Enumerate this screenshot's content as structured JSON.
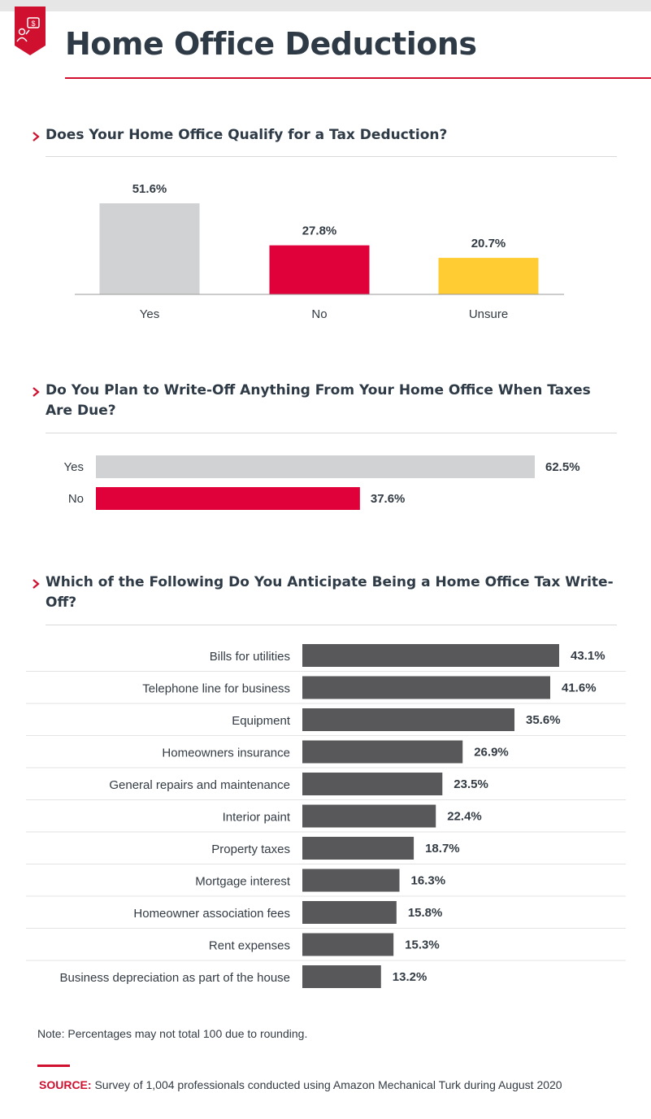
{
  "header": {
    "title": "Home Office Deductions"
  },
  "colors": {
    "accent": "#d0102f",
    "gray": "#d1d2d4",
    "yellow": "#ffcc33",
    "dark": "#58585a"
  },
  "icons": {
    "badge": "tax-dollar-icon",
    "bullet": "chevron-right-icon"
  },
  "chart_data": [
    {
      "type": "bar",
      "title": "Does Your Home Office Qualify for a Tax Deduction?",
      "categories": [
        "Yes",
        "No",
        "Unsure"
      ],
      "values": [
        51.6,
        27.8,
        20.7
      ],
      "value_labels": [
        "51.6%",
        "27.8%",
        "20.7%"
      ],
      "colors": [
        "#d1d2d4",
        "#e0003a",
        "#ffcc33"
      ],
      "unit": "%",
      "ylim": [
        0,
        60
      ],
      "grid": false
    },
    {
      "type": "bar",
      "orientation": "horizontal",
      "title": "Do You Plan to Write-Off Anything From Your Home Office When Taxes Are Due?",
      "categories": [
        "Yes",
        "No"
      ],
      "values": [
        62.5,
        37.6
      ],
      "value_labels": [
        "62.5%",
        "37.6%"
      ],
      "colors": [
        "#d1d2d4",
        "#e0003a"
      ],
      "unit": "%",
      "xlim": [
        0,
        62.5
      ],
      "grid": false
    },
    {
      "type": "bar",
      "orientation": "horizontal",
      "title": "Which of the Following Do You Anticipate Being a Home Office Tax Write-Off?",
      "categories": [
        "Bills for utilities",
        "Telephone line for business",
        "Equipment",
        "Homeowners insurance",
        "General repairs and maintenance",
        "Interior paint",
        "Property taxes",
        "Mortgage interest",
        "Homeowner association fees",
        "Rent expenses",
        "Business depreciation as part of the house"
      ],
      "values": [
        43.1,
        41.6,
        35.6,
        26.9,
        23.5,
        22.4,
        18.7,
        16.3,
        15.8,
        15.3,
        13.2
      ],
      "value_labels": [
        "43.1%",
        "41.6%",
        "35.6%",
        "26.9%",
        "23.5%",
        "22.4%",
        "18.7%",
        "16.3%",
        "15.8%",
        "15.3%",
        "13.2%"
      ],
      "colors": [
        "#58585a"
      ],
      "unit": "%",
      "xlim": [
        0,
        43.1
      ],
      "grid": true
    }
  ],
  "footer": {
    "note": "Note: Percentages may not total 100 due to rounding.",
    "source_label": "SOURCE:",
    "source_text": " Survey of 1,004 professionals conducted using Amazon Mechanical Turk during August 2020"
  }
}
